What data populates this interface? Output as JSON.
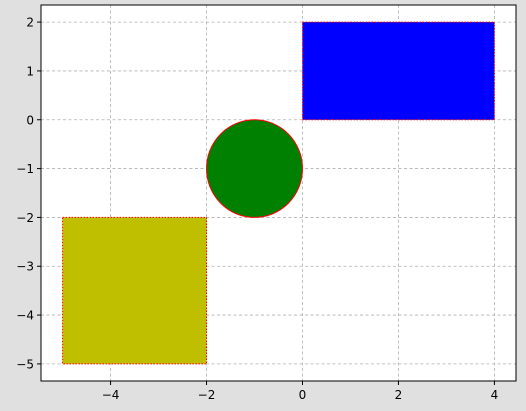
{
  "chart_data": {
    "type": "scatter",
    "title": "",
    "xlabel": "",
    "ylabel": "",
    "xlim": [
      -5.45,
      4.45
    ],
    "ylim": [
      -5.35,
      2.35
    ],
    "grid": true,
    "x_ticks": [
      -4,
      -2,
      0,
      2,
      4
    ],
    "y_ticks": [
      -5,
      -4,
      -3,
      -2,
      -1,
      0,
      1,
      2
    ],
    "x_tick_labels": [
      "−4",
      "−2",
      "0",
      "2",
      "4"
    ],
    "y_tick_labels": [
      "−5",
      "−4",
      "−3",
      "−2",
      "−1",
      "0",
      "1",
      "2"
    ],
    "shapes": [
      {
        "kind": "rectangle",
        "x": 0,
        "y": 0,
        "width": 4,
        "height": 2,
        "fill": "#0000ff",
        "edge": "#ff0000"
      },
      {
        "kind": "circle",
        "cx": -1,
        "cy": -1,
        "r": 1,
        "fill": "#008000",
        "edge": "#ff0000"
      },
      {
        "kind": "rectangle",
        "x": -5,
        "y": -5,
        "width": 3,
        "height": 3,
        "fill": "#bfbf00",
        "edge": "#ff0000"
      }
    ]
  },
  "colors": {
    "figure_background": "#e0e0e0",
    "axes_background": "#ffffff",
    "grid": "#b0b0b0"
  }
}
